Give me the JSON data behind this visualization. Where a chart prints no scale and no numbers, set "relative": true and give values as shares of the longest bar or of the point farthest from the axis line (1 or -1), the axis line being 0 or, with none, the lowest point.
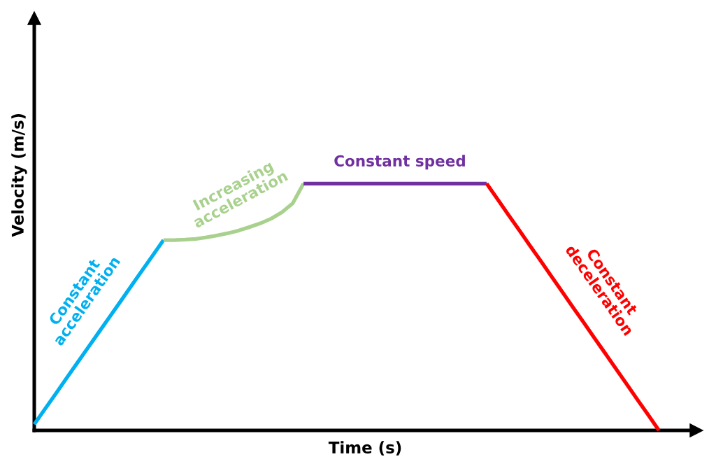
{
  "chart_data": {
    "type": "line",
    "relative": true,
    "xlabel": "Time (s)",
    "ylabel": "Velocity (m/s)",
    "categories": [
      null,
      null,
      null,
      null,
      null,
      null,
      null,
      null,
      null,
      null,
      null,
      null,
      null,
      null,
      null,
      null,
      null,
      null,
      null,
      null,
      null,
      null,
      null,
      null,
      null,
      null,
      null,
      null,
      null,
      null,
      null,
      null,
      null,
      null,
      null,
      null,
      null,
      null,
      null,
      null,
      null,
      null,
      null,
      null,
      null,
      null,
      null,
      null,
      null,
      null,
      null,
      null,
      null,
      null,
      null,
      null,
      null,
      null,
      null
    ],
    "series": [
      {
        "name": "Constant acceleration",
        "color": "#00b0f0",
        "values": [
          0.025,
          0.087,
          0.149,
          0.212,
          0.274,
          0.336,
          0.398,
          0.46,
          0.522,
          0.585,
          0.647,
          0.709,
          0.771,
          null,
          null,
          null,
          null,
          null,
          null,
          null,
          null,
          null,
          null,
          null,
          null,
          null,
          null,
          null,
          null,
          null,
          null,
          null,
          null,
          null,
          null,
          null,
          null,
          null,
          null,
          null,
          null,
          null,
          null,
          null,
          null,
          null,
          null,
          null,
          null,
          null,
          null,
          null,
          null,
          null,
          null,
          null,
          null,
          null,
          null
        ]
      },
      {
        "name": "Increasing acceleration",
        "color": "#a9d18e",
        "values": [
          null,
          null,
          null,
          null,
          null,
          null,
          null,
          null,
          null,
          null,
          null,
          null,
          0.771,
          0.771,
          0.773,
          0.776,
          0.782,
          0.79,
          0.799,
          0.81,
          0.824,
          0.839,
          0.858,
          0.884,
          0.92,
          1,
          null,
          null,
          null,
          null,
          null,
          null,
          null,
          null,
          null,
          null,
          null,
          null,
          null,
          null,
          null,
          null,
          null,
          null,
          null,
          null,
          null,
          null,
          null,
          null,
          null,
          null,
          null,
          null,
          null,
          null,
          null,
          null,
          null
        ]
      },
      {
        "name": "Constant speed",
        "color": "#7030a0",
        "values": [
          null,
          null,
          null,
          null,
          null,
          null,
          null,
          null,
          null,
          null,
          null,
          null,
          null,
          null,
          null,
          null,
          null,
          null,
          null,
          null,
          null,
          null,
          null,
          null,
          null,
          1,
          1,
          1,
          1,
          1,
          1,
          1,
          1,
          1,
          1,
          1,
          1,
          1,
          1,
          1,
          1,
          1,
          1,
          null,
          null,
          null,
          null,
          null,
          null,
          null,
          null,
          null,
          null,
          null,
          null,
          null,
          null,
          null,
          null
        ]
      },
      {
        "name": "Constant deceleration",
        "color": "#ff0000",
        "values": [
          null,
          null,
          null,
          null,
          null,
          null,
          null,
          null,
          null,
          null,
          null,
          null,
          null,
          null,
          null,
          null,
          null,
          null,
          null,
          null,
          null,
          null,
          null,
          null,
          null,
          null,
          null,
          null,
          null,
          null,
          null,
          null,
          null,
          null,
          null,
          null,
          null,
          null,
          null,
          null,
          null,
          null,
          1,
          0.938,
          0.875,
          0.813,
          0.75,
          0.688,
          0.625,
          0.563,
          0.5,
          0.438,
          0.375,
          0.313,
          0.25,
          0.188,
          0.125,
          0.063,
          0
        ]
      }
    ]
  }
}
